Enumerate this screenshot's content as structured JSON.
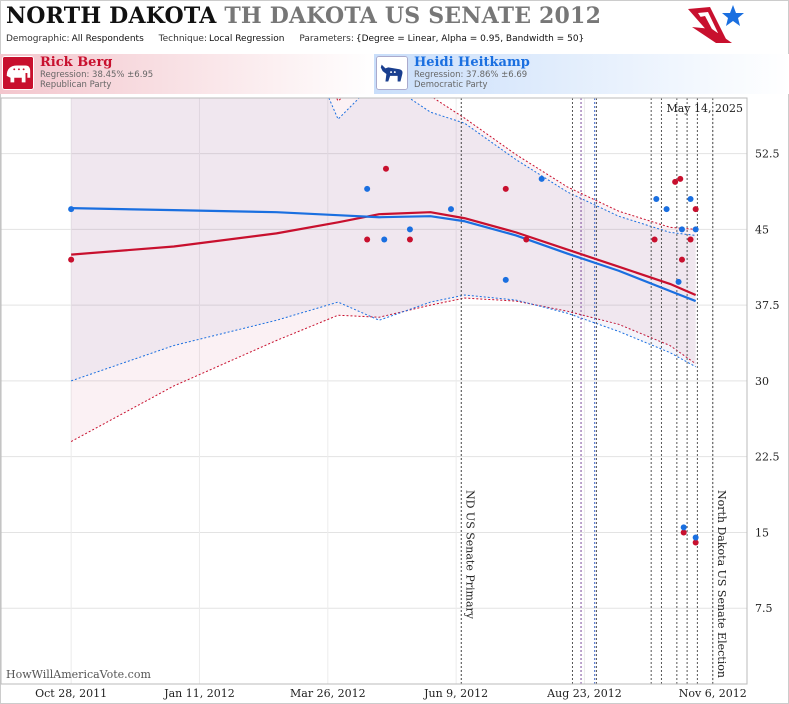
{
  "header": {
    "title_main": "NORTH DAKOTA",
    "title_secondary": "TH DAKOTA US SENATE 2012",
    "params": [
      {
        "key": "Demographic:",
        "value": "All Respondents"
      },
      {
        "key": "Technique:",
        "value": "Local Regression"
      },
      {
        "key": "Parameters:",
        "value": "{Degree = Linear, Alpha = 0.95, Bandwidth = 50}"
      }
    ],
    "logo_icon": "star-flag-logo-icon"
  },
  "candidates": {
    "rep": {
      "name": "Rick Berg",
      "regression": "Regression: 38.45% ±6.95",
      "party": "Republican Party",
      "icon": "elephant-icon",
      "color": "#c8102e"
    },
    "dem": {
      "name": "Heidi Heitkamp",
      "regression": "Regression: 37.86% ±6.69",
      "party": "Democratic Party",
      "icon": "donkey-icon",
      "color": "#1a6fe0"
    }
  },
  "credit": "HowWillAmericaVote.com",
  "chart_data": {
    "type": "scatter",
    "title": "",
    "xlabel": "",
    "ylabel": "",
    "x_ticks": [
      "Oct 28, 2011",
      "Jan 11, 2012",
      "Mar 26, 2012",
      "Jun 9, 2012",
      "Aug 23, 2012",
      "Nov 6, 2012"
    ],
    "x_range": [
      "2011-09-17",
      "2012-11-26"
    ],
    "y_ticks": [
      7.5,
      15,
      22.5,
      30,
      37.5,
      45,
      52.5
    ],
    "ylim": [
      0,
      58
    ],
    "grid": true,
    "date_label": "May 14, 2025",
    "annotations": [
      {
        "date": "2012-06-12",
        "label": "ND US Senate Primary"
      },
      {
        "date": "2012-11-06",
        "label": "North Dakota US Senate Election"
      }
    ],
    "event_lines": [
      "2012-08-16",
      "2012-08-21",
      "2012-08-29",
      "2012-08-30",
      "2012-10-01",
      "2012-10-07",
      "2012-10-16",
      "2012-10-22",
      "2012-10-28"
    ],
    "series": [
      {
        "name": "Rick Berg",
        "color": "#c8102e",
        "points": [
          {
            "x": "2011-10-28",
            "y": 42
          },
          {
            "x": "2012-04-18",
            "y": 44
          },
          {
            "x": "2012-04-29",
            "y": 51
          },
          {
            "x": "2012-05-13",
            "y": 44
          },
          {
            "x": "2012-07-08",
            "y": 49
          },
          {
            "x": "2012-07-20",
            "y": 44
          },
          {
            "x": "2012-10-03",
            "y": 44
          },
          {
            "x": "2012-10-15",
            "y": 49.7
          },
          {
            "x": "2012-10-18",
            "y": 50
          },
          {
            "x": "2012-10-19",
            "y": 42
          },
          {
            "x": "2012-10-20",
            "y": 15
          },
          {
            "x": "2012-10-24",
            "y": 44
          },
          {
            "x": "2012-10-27",
            "y": 47
          },
          {
            "x": "2012-10-27",
            "y": 14
          }
        ],
        "trend": {
          "x": [
            "2011-10-28",
            "2011-12-27",
            "2012-02-25",
            "2012-04-01",
            "2012-04-25",
            "2012-05-25",
            "2012-06-14",
            "2012-07-14",
            "2012-08-13",
            "2012-09-12",
            "2012-10-12",
            "2012-10-27"
          ],
          "y": [
            42.5,
            43.3,
            44.6,
            45.7,
            46.5,
            46.7,
            46.1,
            44.7,
            43.0,
            41.3,
            39.6,
            38.5
          ],
          "upper": [
            null,
            null,
            70,
            57.7,
            61.2,
            58.2,
            56.0,
            52.4,
            49.2,
            46.8,
            45.2,
            45.0
          ],
          "lower": [
            24,
            29.5,
            34.0,
            36.5,
            36.3,
            37.5,
            38.2,
            37.9,
            36.9,
            35.6,
            33.5,
            31.7
          ]
        }
      },
      {
        "name": "Heidi Heitkamp",
        "color": "#1a6fe0",
        "points": [
          {
            "x": "2011-10-28",
            "y": 47
          },
          {
            "x": "2012-04-18",
            "y": 49
          },
          {
            "x": "2012-04-28",
            "y": 44
          },
          {
            "x": "2012-05-13",
            "y": 45
          },
          {
            "x": "2012-06-06",
            "y": 47
          },
          {
            "x": "2012-07-08",
            "y": 40
          },
          {
            "x": "2012-07-29",
            "y": 50
          },
          {
            "x": "2012-10-04",
            "y": 48
          },
          {
            "x": "2012-10-10",
            "y": 47
          },
          {
            "x": "2012-10-17",
            "y": 39.8
          },
          {
            "x": "2012-10-19",
            "y": 45
          },
          {
            "x": "2012-10-20",
            "y": 15.5
          },
          {
            "x": "2012-10-24",
            "y": 48
          },
          {
            "x": "2012-10-27",
            "y": 45
          },
          {
            "x": "2012-10-27",
            "y": 14.5
          }
        ],
        "trend": {
          "x": [
            "2011-10-28",
            "2011-12-27",
            "2012-02-25",
            "2012-04-01",
            "2012-04-25",
            "2012-05-25",
            "2012-06-14",
            "2012-07-14",
            "2012-08-13",
            "2012-09-12",
            "2012-10-12",
            "2012-10-27"
          ],
          "y": [
            47.1,
            46.9,
            46.7,
            46.4,
            46.2,
            46.3,
            45.8,
            44.4,
            42.6,
            40.9,
            38.9,
            37.9
          ],
          "upper": [
            null,
            null,
            70,
            55.9,
            60.0,
            56.6,
            55.5,
            51.9,
            48.7,
            46.3,
            44.7,
            44.4
          ],
          "lower": [
            30,
            33.5,
            36.0,
            37.8,
            36.0,
            37.8,
            38.5,
            38.0,
            36.7,
            34.9,
            32.8,
            31.4
          ]
        }
      }
    ]
  }
}
